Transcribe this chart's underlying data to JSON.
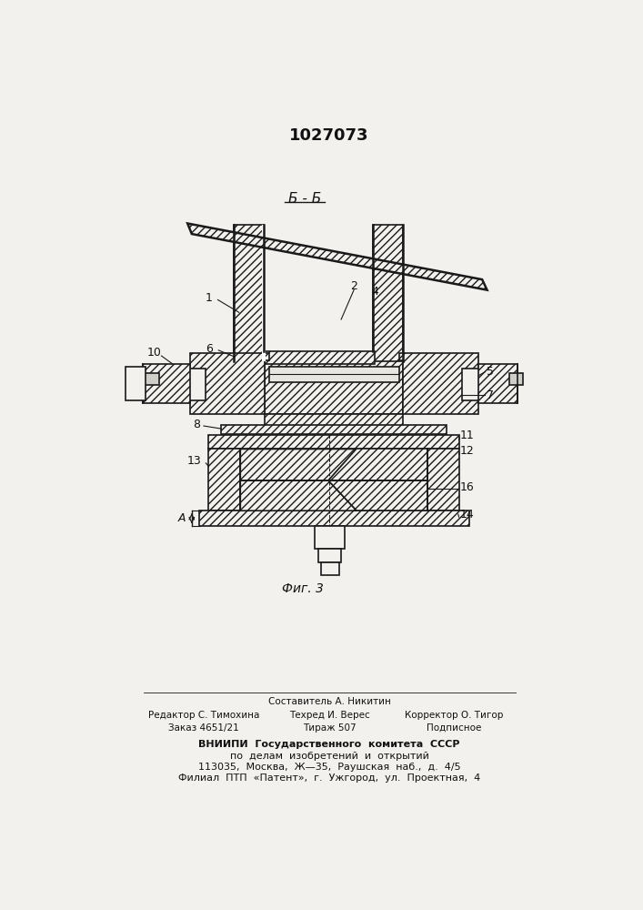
{
  "title": "1027073",
  "section_label": "Б - Б",
  "fig_label": "Фиг. 3",
  "background_color": "#f2f1ed",
  "line_color": "#1a1a1a",
  "footer": {
    "col1_line1": "Редактор С. Тимохина",
    "col1_line2": "Заказ 4651/21",
    "col2_line0": "Составитель А. Никитин",
    "col2_line1": "Техред И. Верес",
    "col2_line2": "Тираж 507",
    "col3_line1": "Корректор О. Тигор",
    "col3_line2": "Подписное",
    "vniip1": "ВНИИПИ  Государственного  комитета  СССР",
    "vniip2": "по  делам  изобретений  и  открытий",
    "vniip3": "113035,  Москва,  Ж—35,  Раушская  наб.,  д.  4/5",
    "vniip4": "Филиал  ПТП  «Патент»,  г.  Ужгород,  ул.  Проектная,  4"
  }
}
